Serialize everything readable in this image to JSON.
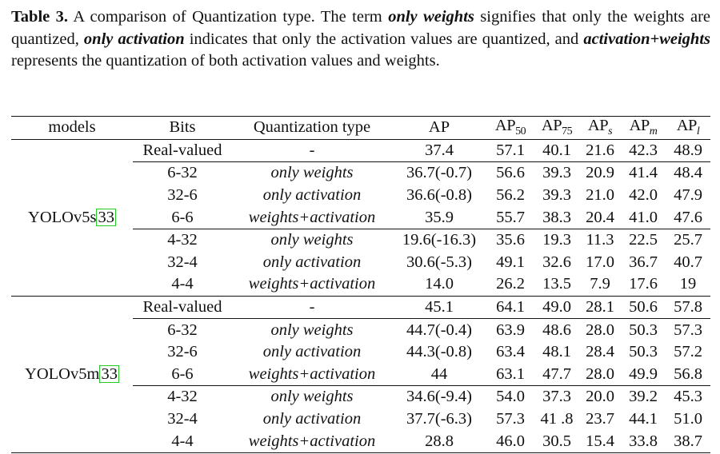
{
  "caption": {
    "label": "Table 3.",
    "part1": " A comparison of Quantization type. The term ",
    "emph1": "only weights",
    "part2": " signifies that only the weights are quantized, ",
    "emph2": "only activation",
    "part3": " indicates that only the activation values are quantized, and ",
    "emph3": "activation+weights",
    "part4": " represents the quantization of both activation values and weights."
  },
  "headers": {
    "models": "models",
    "bits": "Bits",
    "qtype": "Quantization type",
    "ap": "AP",
    "ap50": {
      "base": "AP",
      "sub": "50"
    },
    "ap75": {
      "base": "AP",
      "sub": "75"
    },
    "aps": {
      "base": "AP",
      "sub": "s"
    },
    "apm": {
      "base": "AP",
      "sub": "m"
    },
    "apl": {
      "base": "AP",
      "sub": "l"
    }
  },
  "groups": [
    {
      "model": "YOLOv5s",
      "ref": "33",
      "rows": [
        {
          "bits": "Real-valued",
          "qtype": "-",
          "ap": "37.4",
          "ap50": "57.1",
          "ap75": "40.1",
          "aps": "21.6",
          "apm": "42.3",
          "apl": "48.9"
        },
        {
          "bits": "6-32",
          "qtype": "only weights",
          "ap": "36.7(-0.7)",
          "ap50": "56.6",
          "ap75": "39.3",
          "aps": "20.9",
          "apm": "41.4",
          "apl": "48.4"
        },
        {
          "bits": "32-6",
          "qtype": "only activation",
          "ap": "36.6(-0.8)",
          "ap50": "56.2",
          "ap75": "39.3",
          "aps": "21.0",
          "apm": "42.0",
          "apl": "47.9"
        },
        {
          "bits": "6-6",
          "qtype": "weights+activation",
          "ap": "35.9",
          "ap50": "55.7",
          "ap75": "38.3",
          "aps": "20.4",
          "apm": "41.0",
          "apl": "47.6"
        },
        {
          "bits": "4-32",
          "qtype": "only weights",
          "ap": "19.6(-16.3)",
          "ap50": "35.6",
          "ap75": "19.3",
          "aps": "11.3",
          "apm": "22.5",
          "apl": "25.7"
        },
        {
          "bits": "32-4",
          "qtype": "only activation",
          "ap": "30.6(-5.3)",
          "ap50": "49.1",
          "ap75": "32.6",
          "aps": "17.0",
          "apm": "36.7",
          "apl": "40.7"
        },
        {
          "bits": "4-4",
          "qtype": "weights+activation",
          "ap": "14.0",
          "ap50": "26.2",
          "ap75": "13.5",
          "aps": "7.9",
          "apm": "17.6",
          "apl": "19"
        }
      ]
    },
    {
      "model": "YOLOv5m",
      "ref": "33",
      "rows": [
        {
          "bits": "Real-valued",
          "qtype": "-",
          "ap": "45.1",
          "ap50": "64.1",
          "ap75": "49.0",
          "aps": "28.1",
          "apm": "50.6",
          "apl": "57.8"
        },
        {
          "bits": "6-32",
          "qtype": "only weights",
          "ap": "44.7(-0.4)",
          "ap50": "63.9",
          "ap75": "48.6",
          "aps": "28.0",
          "apm": "50.3",
          "apl": "57.3"
        },
        {
          "bits": "32-6",
          "qtype": "only activation",
          "ap": "44.3(-0.8)",
          "ap50": "63.4",
          "ap75": "48.1",
          "aps": "28.4",
          "apm": "50.3",
          "apl": "57.2"
        },
        {
          "bits": "6-6",
          "qtype": "weights+activation",
          "ap": "44",
          "ap50": "63.1",
          "ap75": "47.7",
          "aps": "28.0",
          "apm": "49.9",
          "apl": "56.8"
        },
        {
          "bits": "4-32",
          "qtype": "only weights",
          "ap": "34.6(-9.4)",
          "ap50": "54.0",
          "ap75": "37.3",
          "aps": "20.0",
          "apm": "39.2",
          "apl": "45.3"
        },
        {
          "bits": "32-4",
          "qtype": "only activation",
          "ap": "37.7(-6.3)",
          "ap50": "57.3",
          "ap75": "41 .8",
          "aps": "23.7",
          "apm": "44.1",
          "apl": "51.0"
        },
        {
          "bits": "4-4",
          "qtype": "weights+activation",
          "ap": "28.8",
          "ap50": "46.0",
          "ap75": "30.5",
          "aps": "15.4",
          "apm": "33.8",
          "apl": "38.7"
        }
      ]
    }
  ],
  "colors": {
    "ref_box": "#22cc22"
  }
}
